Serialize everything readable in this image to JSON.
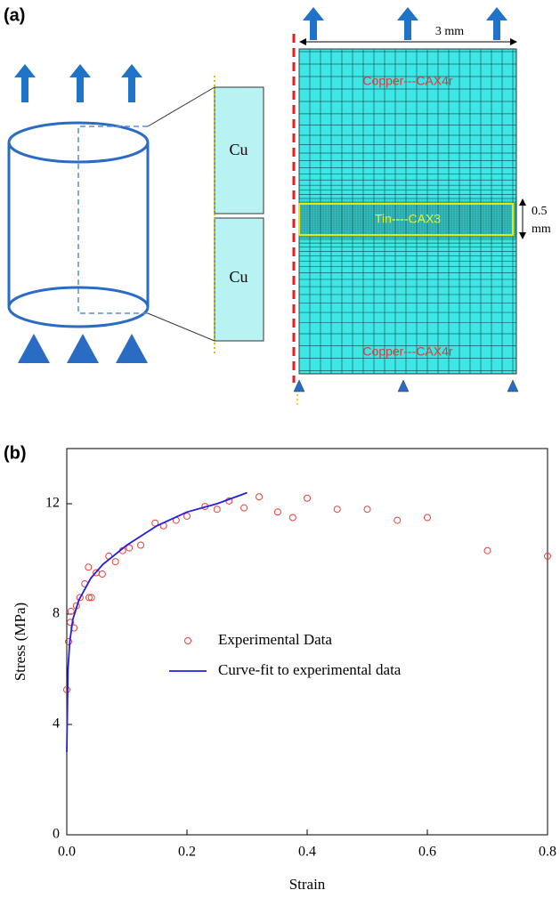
{
  "panel_a": {
    "label": "(a)",
    "cu_top": "Cu",
    "cu_bottom": "Cu",
    "width": "3 mm",
    "thickness_value": "0.5",
    "thickness_unit": "mm",
    "copper_top": "Copper---CAX4r",
    "tin": "Tin----CAX3",
    "copper_bottom": "Copper---CAX4r"
  },
  "chart_data": {
    "type": "scatter",
    "panel_label": "(b)",
    "x_label": "Strain",
    "y_label": "Stress (MPa)",
    "xlim": [
      0,
      0.8
    ],
    "ylim": [
      0,
      14
    ],
    "xticks": [
      {
        "value": 0,
        "label": "0.0"
      },
      0.2,
      0.4,
      0.6,
      0.8
    ],
    "yticks": [
      0,
      4,
      8,
      12
    ],
    "series": [
      {
        "name": "Experimental Data",
        "type": "scatter",
        "color": "#e8403a",
        "x": [
          0,
          0.003,
          0.006,
          0.007,
          0.012,
          0.016,
          0.022,
          0.03,
          0.036,
          0.037,
          0.041,
          0.049,
          0.059,
          0.07,
          0.081,
          0.093,
          0.104,
          0.123,
          0.147,
          0.161,
          0.182,
          0.2,
          0.23,
          0.25,
          0.27,
          0.295,
          0.32,
          0.351,
          0.376,
          0.4,
          0.45,
          0.5,
          0.55,
          0.6,
          0.7,
          0.8
        ],
        "values": [
          5.26,
          7.0,
          7.7,
          8.1,
          7.5,
          8.3,
          8.6,
          9.1,
          9.7,
          8.6,
          8.6,
          9.5,
          9.45,
          10.1,
          9.9,
          10.3,
          10.4,
          10.5,
          11.3,
          11.2,
          11.4,
          11.55,
          11.9,
          11.8,
          12.1,
          11.85,
          12.25,
          11.7,
          11.5,
          12.2,
          11.8,
          11.8,
          11.4,
          11.5,
          10.3,
          10.1
        ]
      },
      {
        "name": "Curve-fit to experimental data",
        "type": "line",
        "color": "#2020e0",
        "x": [
          0,
          0.002,
          0.005,
          0.01,
          0.02,
          0.04,
          0.06,
          0.1,
          0.15,
          0.2,
          0.25,
          0.3
        ],
        "values": [
          3.0,
          6.0,
          7.0,
          7.8,
          8.5,
          9.3,
          9.8,
          10.5,
          11.2,
          11.7,
          12.0,
          12.4
        ]
      }
    ]
  }
}
